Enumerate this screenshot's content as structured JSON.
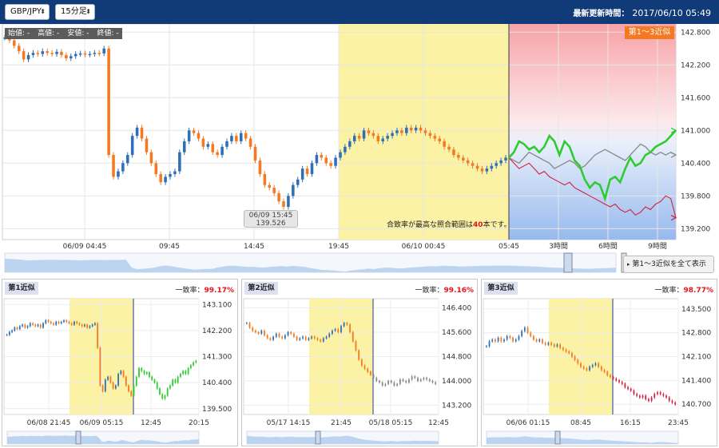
{
  "header": {
    "symbol": "GBP/JPY",
    "timeframe": "15分足",
    "updated_label": "最新更新時間：",
    "updated_value": "2017/06/10 05:49"
  },
  "main": {
    "ohlc_labels": [
      "始値: -",
      "高値: -",
      "安値: -",
      "終値: -"
    ],
    "section_tag": "第1～3近似",
    "tooltip_time": "06/09 15:45",
    "tooltip_price": "139.526",
    "range_note_prefix": "合致率が最高な照合範囲は",
    "range_note_value": "40",
    "range_note_suffix": "本です。",
    "show_all_label": "第1～3近似を全て表示",
    "x_ticks": [
      "06/09 04:45",
      "09:45",
      "14:45",
      "19:45",
      "06/10 00:45",
      "05:45",
      "3時間",
      "6時間",
      "9時間"
    ],
    "y_ticks": [
      "142.800",
      "142.200",
      "141.600",
      "141.000",
      "140.400",
      "139.800",
      "139.200"
    ]
  },
  "panels": [
    {
      "title": "第1近似",
      "match_label": "一致率：",
      "match_value": "99.17%",
      "x_ticks": [
        "06/08 21:45",
        "06/09 05:15",
        "12:45",
        "20:15"
      ],
      "y_ticks": [
        "143.100",
        "142.200",
        "141.300",
        "140.400",
        "139.500"
      ]
    },
    {
      "title": "第2近似",
      "match_label": "一致率：",
      "match_value": "99.16%",
      "x_ticks": [
        "05/17 14:15",
        "21:45",
        "05/18 05:15",
        "12:45"
      ],
      "y_ticks": [
        "146.400",
        "145.600",
        "144.800",
        "144.000",
        "143.200"
      ]
    },
    {
      "title": "第3近似",
      "match_label": "一致率：",
      "match_value": "98.77%",
      "x_ticks": [
        "06/06 01:15",
        "08:45",
        "16:15",
        "23:45"
      ],
      "y_ticks": [
        "143.500",
        "142.800",
        "142.100",
        "141.400",
        "140.700"
      ]
    }
  ],
  "colors": {
    "up": "#2f6fb7",
    "down": "#f47920",
    "highlight": "#fbf2a6",
    "first": "#2fcc2f",
    "second": "#888888",
    "third": "#d0213d"
  },
  "chart_data": [
    {
      "type": "candlestick",
      "title": "GBP/JPY 15分足",
      "ylim": [
        139.0,
        142.95
      ],
      "series": [
        {
          "name": "price",
          "values": [
            142.7,
            142.65,
            142.55,
            142.45,
            142.3,
            142.38,
            142.42,
            142.4,
            142.45,
            142.42,
            142.4,
            142.44,
            142.38,
            142.32,
            142.36,
            142.4,
            142.41,
            142.39,
            142.4,
            142.42,
            142.41,
            142.5,
            140.55,
            140.15,
            140.25,
            140.4,
            140.55,
            140.9,
            141.05,
            140.85,
            140.6,
            140.4,
            140.2,
            140.05,
            140.15,
            140.2,
            140.25,
            140.6,
            140.8,
            141.0,
            140.95,
            140.85,
            140.7,
            140.75,
            140.6,
            140.55,
            140.7,
            140.8,
            140.9,
            140.8,
            140.95,
            140.85,
            140.7,
            140.45,
            140.2,
            140.0,
            139.95,
            139.85,
            139.7,
            139.6,
            139.8,
            140.0,
            140.1,
            140.3,
            140.2,
            140.4,
            140.55,
            140.5,
            140.4,
            140.35,
            140.5,
            140.6,
            140.7,
            140.8,
            140.9,
            140.85,
            141.0,
            140.95,
            140.9,
            140.8,
            140.85,
            140.9,
            140.95,
            141.0,
            140.95,
            141.05,
            141.0,
            141.05,
            141.0,
            140.95,
            140.9,
            140.85,
            140.8,
            140.7,
            140.65,
            140.55,
            140.5,
            140.45,
            140.4,
            140.35,
            140.3,
            140.25,
            140.3,
            140.35,
            140.4,
            140.45,
            140.5
          ]
        },
        {
          "name": "第1近似",
          "values": [
            140.5,
            140.6,
            140.8,
            140.75,
            140.65,
            140.7,
            140.6,
            140.7,
            140.9,
            140.8,
            140.55,
            140.8,
            140.7,
            140.45,
            140.35,
            140.1,
            139.95,
            140.05,
            140.0,
            139.75,
            140.1,
            140.15,
            140.05,
            140.3,
            140.5,
            140.35,
            140.4,
            140.55,
            140.6,
            140.7,
            140.75,
            140.8,
            140.9,
            141.0
          ]
        },
        {
          "name": "第2近似",
          "values": [
            140.5,
            140.45,
            140.4,
            140.5,
            140.6,
            140.55,
            140.5,
            140.45,
            140.4,
            140.3,
            140.35,
            140.4,
            140.45,
            140.4,
            140.3,
            140.35,
            140.45,
            140.55,
            140.6,
            140.65,
            140.6,
            140.55,
            140.5,
            140.45,
            140.55,
            140.65,
            140.75,
            140.7,
            140.6,
            140.55,
            140.6,
            140.55,
            140.6,
            140.55
          ]
        },
        {
          "name": "第3近似",
          "values": [
            140.5,
            140.4,
            140.3,
            140.35,
            140.4,
            140.3,
            140.2,
            140.25,
            140.15,
            140.1,
            140.05,
            140.0,
            140.05,
            139.95,
            139.9,
            139.85,
            139.8,
            139.75,
            139.7,
            139.65,
            139.6,
            139.65,
            139.55,
            139.5,
            139.55,
            139.45,
            139.5,
            139.6,
            139.55,
            139.65,
            139.7,
            139.8,
            139.75,
            139.4
          ]
        }
      ]
    },
    {
      "type": "candlestick",
      "title": "第1近似",
      "ylim": [
        139.3,
        143.3
      ],
      "values": [
        142.05,
        142.15,
        142.2,
        142.3,
        142.25,
        142.35,
        142.4,
        142.3,
        142.35,
        142.45,
        142.4,
        142.35,
        142.4,
        142.3,
        142.45,
        142.55,
        142.5,
        142.45,
        142.4,
        142.5,
        142.45,
        142.5,
        142.55,
        142.5,
        142.45,
        142.4,
        142.5,
        142.45,
        142.4,
        142.35,
        142.4,
        142.3,
        142.35,
        142.4,
        142.45,
        141.6,
        140.3,
        140.1,
        140.5,
        140.6,
        140.4,
        140.2,
        140.3,
        140.7,
        140.8,
        140.6,
        140.3,
        140.1,
        139.95,
        140.3,
        140.6,
        140.9,
        140.8,
        140.7,
        140.75,
        140.6,
        140.5,
        140.4,
        140.2,
        140.0,
        139.85,
        139.95,
        140.2,
        140.3,
        140.5,
        140.4,
        140.6,
        140.7,
        140.8,
        140.7,
        140.9,
        141.0,
        141.1,
        141.15
      ]
    },
    {
      "type": "candlestick",
      "title": "第2近似",
      "ylim": [
        142.9,
        146.7
      ],
      "values": [
        145.9,
        145.75,
        145.65,
        145.6,
        145.55,
        145.65,
        145.5,
        145.4,
        145.35,
        145.45,
        145.55,
        145.45,
        145.4,
        145.5,
        145.6,
        145.55,
        145.45,
        145.35,
        145.4,
        145.45,
        145.35,
        145.4,
        145.45,
        145.4,
        145.35,
        145.3,
        145.4,
        145.45,
        145.55,
        145.65,
        145.7,
        145.6,
        145.8,
        145.9,
        145.85,
        145.6,
        145.3,
        145.0,
        144.7,
        144.5,
        144.4,
        144.3,
        144.2,
        144.1,
        144.0,
        143.95,
        143.85,
        143.9,
        144.0,
        143.95,
        143.85,
        143.9,
        144.05,
        144.0,
        143.95,
        144.05,
        144.15,
        144.1,
        144.0,
        144.05,
        144.1,
        144.05,
        144.0,
        143.95,
        143.9
      ]
    },
    {
      "type": "candlestick",
      "title": "第3近似",
      "ylim": [
        140.4,
        143.8
      ],
      "values": [
        142.4,
        142.55,
        142.6,
        142.55,
        142.65,
        142.55,
        142.6,
        142.7,
        142.65,
        142.55,
        142.6,
        142.7,
        142.85,
        142.95,
        142.8,
        142.7,
        142.6,
        142.55,
        142.6,
        142.5,
        142.45,
        142.5,
        142.45,
        142.4,
        142.45,
        142.35,
        142.3,
        142.25,
        142.2,
        142.1,
        142.0,
        141.9,
        141.8,
        141.75,
        141.7,
        141.8,
        141.85,
        141.9,
        141.8,
        141.7,
        141.65,
        141.55,
        141.5,
        141.45,
        141.4,
        141.35,
        141.3,
        141.2,
        141.15,
        141.1,
        141.0,
        140.95,
        140.9,
        140.95,
        140.85,
        140.8,
        140.9,
        141.0,
        141.05,
        141.0,
        140.95,
        140.9,
        140.8,
        140.75,
        140.7
      ]
    }
  ]
}
